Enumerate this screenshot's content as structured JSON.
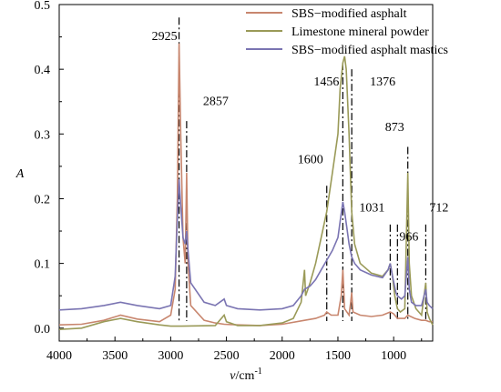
{
  "chart_data": {
    "type": "line",
    "xlabel": "v/cm",
    "xlabel_italic_part": "v",
    "xlabel_unit": "/cm",
    "xlabel_superscript": "-1",
    "ylabel": "A",
    "xlim": [
      4000,
      650
    ],
    "ylim": [
      -0.02,
      0.5
    ],
    "x_ticks": [
      4000,
      3500,
      3000,
      2500,
      2000,
      1500,
      1000
    ],
    "x_tick_labels": [
      "4000",
      "3500",
      "3000",
      "2500",
      "2000",
      "1500",
      "1000"
    ],
    "y_ticks": [
      0.0,
      0.1,
      0.2,
      0.3,
      0.4,
      0.5
    ],
    "y_tick_labels": [
      "0.0",
      "0.1",
      "0.2",
      "0.3",
      "0.4",
      "0.5"
    ],
    "legend_position": "top-right",
    "series": [
      {
        "name": "SBS−modified asphalt",
        "color": "#c8866e",
        "points": [
          [
            4000,
            0.005
          ],
          [
            3800,
            0.006
          ],
          [
            3600,
            0.012
          ],
          [
            3450,
            0.02
          ],
          [
            3300,
            0.014
          ],
          [
            3100,
            0.01
          ],
          [
            3000,
            0.02
          ],
          [
            2960,
            0.06
          ],
          [
            2940,
            0.2
          ],
          [
            2925,
            0.44
          ],
          [
            2910,
            0.3
          ],
          [
            2890,
            0.14
          ],
          [
            2870,
            0.1
          ],
          [
            2857,
            0.24
          ],
          [
            2845,
            0.1
          ],
          [
            2820,
            0.035
          ],
          [
            2700,
            0.012
          ],
          [
            2600,
            0.008
          ],
          [
            2520,
            0.006
          ],
          [
            2400,
            0.005
          ],
          [
            2200,
            0.004
          ],
          [
            2000,
            0.006
          ],
          [
            1800,
            0.012
          ],
          [
            1700,
            0.015
          ],
          [
            1620,
            0.02
          ],
          [
            1600,
            0.025
          ],
          [
            1560,
            0.02
          ],
          [
            1500,
            0.02
          ],
          [
            1470,
            0.05
          ],
          [
            1456,
            0.09
          ],
          [
            1440,
            0.03
          ],
          [
            1400,
            0.02
          ],
          [
            1385,
            0.04
          ],
          [
            1376,
            0.055
          ],
          [
            1365,
            0.025
          ],
          [
            1300,
            0.02
          ],
          [
            1200,
            0.018
          ],
          [
            1100,
            0.02
          ],
          [
            1031,
            0.025
          ],
          [
            1000,
            0.022
          ],
          [
            966,
            0.015
          ],
          [
            900,
            0.015
          ],
          [
            873,
            0.02
          ],
          [
            810,
            0.015
          ],
          [
            750,
            0.012
          ],
          [
            712,
            0.012
          ],
          [
            680,
            0.01
          ],
          [
            650,
            0.01
          ]
        ]
      },
      {
        "name": "Limestone mineral powder",
        "color": "#9a9a58",
        "points": [
          [
            4000,
            -0.002
          ],
          [
            3800,
            0.0
          ],
          [
            3600,
            0.01
          ],
          [
            3450,
            0.015
          ],
          [
            3300,
            0.01
          ],
          [
            3100,
            0.005
          ],
          [
            3000,
            0.003
          ],
          [
            2900,
            0.003
          ],
          [
            2600,
            0.004
          ],
          [
            2520,
            0.02
          ],
          [
            2500,
            0.01
          ],
          [
            2400,
            0.004
          ],
          [
            2200,
            0.004
          ],
          [
            2000,
            0.008
          ],
          [
            1900,
            0.015
          ],
          [
            1830,
            0.04
          ],
          [
            1800,
            0.09
          ],
          [
            1790,
            0.05
          ],
          [
            1750,
            0.07
          ],
          [
            1700,
            0.1
          ],
          [
            1650,
            0.14
          ],
          [
            1600,
            0.18
          ],
          [
            1550,
            0.24
          ],
          [
            1500,
            0.3
          ],
          [
            1480,
            0.37
          ],
          [
            1456,
            0.41
          ],
          [
            1440,
            0.42
          ],
          [
            1425,
            0.4
          ],
          [
            1400,
            0.3
          ],
          [
            1376,
            0.18
          ],
          [
            1350,
            0.13
          ],
          [
            1300,
            0.1
          ],
          [
            1200,
            0.085
          ],
          [
            1100,
            0.08
          ],
          [
            1050,
            0.09
          ],
          [
            1031,
            0.1
          ],
          [
            1010,
            0.08
          ],
          [
            990,
            0.05
          ],
          [
            966,
            0.03
          ],
          [
            940,
            0.025
          ],
          [
            900,
            0.03
          ],
          [
            873,
            0.24
          ],
          [
            860,
            0.1
          ],
          [
            840,
            0.05
          ],
          [
            800,
            0.03
          ],
          [
            750,
            0.02
          ],
          [
            712,
            0.07
          ],
          [
            700,
            0.025
          ],
          [
            680,
            0.015
          ],
          [
            650,
            0.005
          ]
        ]
      },
      {
        "name": "SBS−modified asphalt mastics",
        "color": "#7a74b2",
        "points": [
          [
            4000,
            0.028
          ],
          [
            3800,
            0.03
          ],
          [
            3600,
            0.035
          ],
          [
            3450,
            0.04
          ],
          [
            3300,
            0.035
          ],
          [
            3100,
            0.03
          ],
          [
            3000,
            0.035
          ],
          [
            2960,
            0.08
          ],
          [
            2940,
            0.17
          ],
          [
            2925,
            0.23
          ],
          [
            2910,
            0.19
          ],
          [
            2890,
            0.14
          ],
          [
            2870,
            0.13
          ],
          [
            2857,
            0.15
          ],
          [
            2845,
            0.12
          ],
          [
            2820,
            0.07
          ],
          [
            2700,
            0.04
          ],
          [
            2600,
            0.035
          ],
          [
            2520,
            0.045
          ],
          [
            2500,
            0.035
          ],
          [
            2400,
            0.03
          ],
          [
            2200,
            0.028
          ],
          [
            2000,
            0.03
          ],
          [
            1900,
            0.035
          ],
          [
            1830,
            0.05
          ],
          [
            1800,
            0.06
          ],
          [
            1750,
            0.065
          ],
          [
            1700,
            0.075
          ],
          [
            1650,
            0.09
          ],
          [
            1600,
            0.105
          ],
          [
            1550,
            0.12
          ],
          [
            1500,
            0.14
          ],
          [
            1480,
            0.165
          ],
          [
            1456,
            0.195
          ],
          [
            1440,
            0.18
          ],
          [
            1420,
            0.155
          ],
          [
            1400,
            0.13
          ],
          [
            1376,
            0.11
          ],
          [
            1350,
            0.1
          ],
          [
            1300,
            0.09
          ],
          [
            1200,
            0.082
          ],
          [
            1100,
            0.078
          ],
          [
            1050,
            0.09
          ],
          [
            1031,
            0.1
          ],
          [
            1010,
            0.08
          ],
          [
            980,
            0.055
          ],
          [
            966,
            0.05
          ],
          [
            930,
            0.045
          ],
          [
            900,
            0.05
          ],
          [
            873,
            0.11
          ],
          [
            860,
            0.06
          ],
          [
            840,
            0.04
          ],
          [
            800,
            0.035
          ],
          [
            750,
            0.035
          ],
          [
            712,
            0.06
          ],
          [
            700,
            0.04
          ],
          [
            680,
            0.035
          ],
          [
            650,
            0.03
          ]
        ]
      }
    ],
    "annotations": [
      {
        "label": "2925",
        "x": 2925,
        "text_y": 0.445,
        "line_top": 0.48
      },
      {
        "label": "2857",
        "x": 2857,
        "text_y": 0.345,
        "line_top": 0.32
      },
      {
        "label": "1600",
        "x": 1600,
        "text_y": 0.255,
        "line_top": 0.22
      },
      {
        "label": "1456",
        "x": 1456,
        "text_y": 0.375,
        "line_top": 0.41
      },
      {
        "label": "1376",
        "x": 1376,
        "text_y": 0.375,
        "line_top": 0.4
      },
      {
        "label": "1031",
        "x": 1031,
        "text_y": 0.18,
        "line_top": 0.16
      },
      {
        "label": "966",
        "x": 966,
        "text_y": 0.135,
        "line_top": 0.16
      },
      {
        "label": "873",
        "x": 873,
        "text_y": 0.305,
        "line_top": 0.28
      },
      {
        "label": "712",
        "x": 712,
        "text_y": 0.18,
        "line_top": 0.16
      }
    ]
  }
}
